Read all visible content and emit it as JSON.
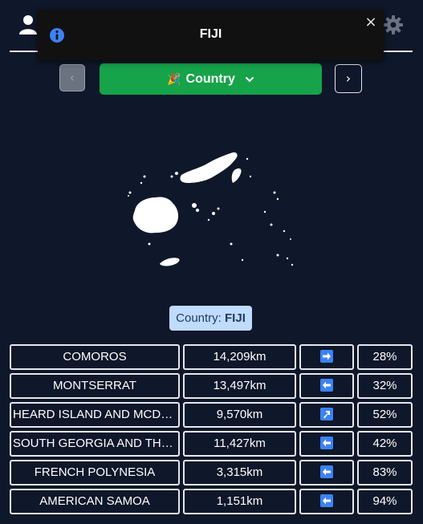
{
  "toast": {
    "title": "FIJI",
    "close_label": "×"
  },
  "controls": {
    "prev_label": "‹",
    "next_label": "›",
    "category_emoji": "🎉",
    "category_label": "Country"
  },
  "answer": {
    "prefix": "Country:",
    "name": "FIJI"
  },
  "guesses": [
    {
      "name": "COMOROS",
      "distance": "14,209km",
      "direction": "right",
      "percent": "28%"
    },
    {
      "name": "MONTSERRAT",
      "distance": "13,497km",
      "direction": "left",
      "percent": "32%"
    },
    {
      "name": "HEARD ISLAND AND MCDONALD ISLANDS",
      "distance": "9,570km",
      "direction": "up-right",
      "percent": "52%"
    },
    {
      "name": "SOUTH GEORGIA AND THE SOUTH SANDWICH ISLANDS",
      "distance": "11,427km",
      "direction": "left",
      "percent": "42%"
    },
    {
      "name": "FRENCH POLYNESIA",
      "distance": "3,315km",
      "direction": "left",
      "percent": "83%"
    },
    {
      "name": "AMERICAN SAMOA",
      "distance": "1,151km",
      "direction": "left",
      "percent": "94%"
    }
  ],
  "colors": {
    "background": "#0f172a",
    "accent_green": "#16a34a",
    "label_bg": "#bfdbfe",
    "arrow_blue": "#3b82f6"
  },
  "icons": {
    "header_left": "user-icon",
    "header_right": "gear-icon",
    "toast": "info-icon"
  }
}
